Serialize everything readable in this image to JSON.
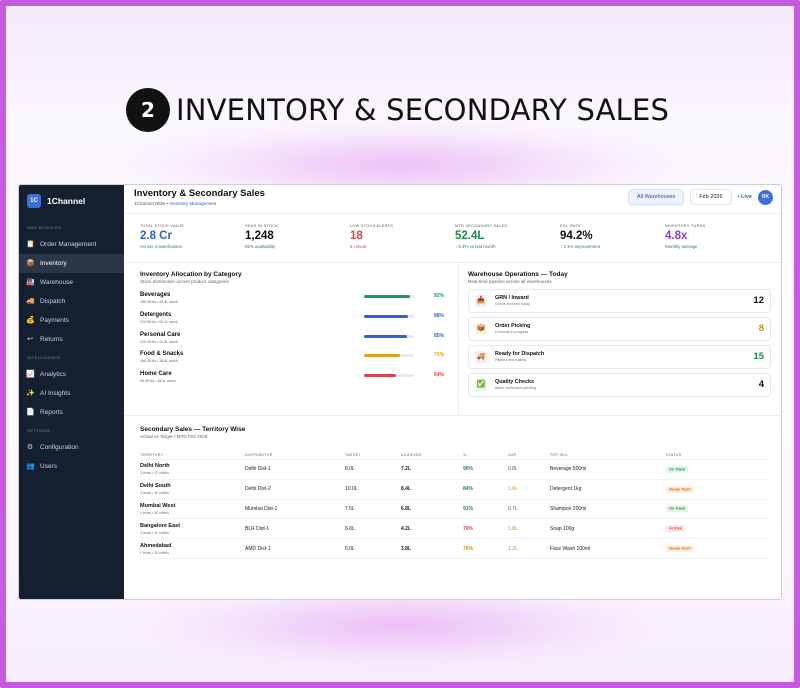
{
  "hero": {
    "number": "2",
    "title": "INVENTORY & SECONDARY SALES"
  },
  "app": {
    "brand": {
      "logo": "1C",
      "name": "1Channel"
    },
    "sidebar": {
      "sections": [
        {
          "label": "DMS MODULES",
          "items": [
            {
              "label": "Order Management",
              "icon": "clipboard-icon",
              "glyph": "📋",
              "active": false
            },
            {
              "label": "Inventory",
              "icon": "box-icon",
              "glyph": "📦",
              "active": true
            },
            {
              "label": "Warehouse",
              "icon": "warehouse-icon",
              "glyph": "🏭",
              "active": false
            },
            {
              "label": "Dispatch",
              "icon": "truck-icon",
              "glyph": "🚚",
              "active": false
            },
            {
              "label": "Payments",
              "icon": "money-bag-icon",
              "glyph": "💰",
              "active": false
            },
            {
              "label": "Returns",
              "icon": "return-icon",
              "glyph": "↩",
              "active": false
            }
          ]
        },
        {
          "label": "INTELLIGENCE",
          "items": [
            {
              "label": "Analytics",
              "icon": "chart-icon",
              "glyph": "📈",
              "active": false
            },
            {
              "label": "AI Insights",
              "icon": "sparkle-icon",
              "glyph": "✨",
              "active": false
            },
            {
              "label": "Reports",
              "icon": "report-icon",
              "glyph": "📄",
              "active": false
            }
          ]
        },
        {
          "label": "SETTINGS",
          "items": [
            {
              "label": "Configuration",
              "icon": "gear-icon",
              "glyph": "⚙",
              "active": false
            },
            {
              "label": "Users",
              "icon": "users-icon",
              "glyph": "👥",
              "active": false
            }
          ]
        }
      ]
    },
    "header": {
      "title": "Inventory & Secondary Sales",
      "crumb_prefix": "1Channel DMS • ",
      "crumb_page": "Inventory Management",
      "warehouse_selector": "All Warehouses",
      "period": "Feb 2026",
      "live_label": "• Live",
      "avatar": "RK"
    },
    "kpis": [
      {
        "label": "TOTAL STOCK VALUE",
        "value": "2.8 Cr",
        "sub": "Across 3 warehouses",
        "value_color": "#2f5fd0",
        "sub_color": "#1c8a4e"
      },
      {
        "label": "SKUS IN STOCK",
        "value": "1,248",
        "sub": "92% availability",
        "value_color": "#111111",
        "sub_color": "#1c8a4e"
      },
      {
        "label": "LOW STOCK ALERTS",
        "value": "18",
        "sub": "6 critical",
        "value_color": "#d9434b",
        "sub_color": "#d9434b"
      },
      {
        "label": "MTD SECONDARY SALES",
        "value": "52.4L",
        "sub": "↑ 8.4% vs last month",
        "value_color": "#1c8a4e",
        "sub_color": "#1c8a4e"
      },
      {
        "label": "FILL RATE",
        "value": "94.2%",
        "sub": "↑ 2.1% improvement",
        "value_color": "#111111",
        "sub_color": "#1c8a4e"
      },
      {
        "label": "INVENTORY TURNS",
        "value": "4.8x",
        "sub": "Monthly average",
        "value_color": "#8a3fd1",
        "sub_color": "#1c8a4e"
      }
    ],
    "allocation": {
      "title": "Inventory Allocation by Category",
      "subtitle": "Stock distribution across product categories",
      "rows": [
        {
          "name": "Beverages",
          "meta": "186 SKUs • 82.4L stock",
          "pct_label": "92%",
          "fraction": 0.92,
          "color": "#1c9a5f"
        },
        {
          "name": "Detergents",
          "meta": "124 SKUs • 64.2L stock",
          "pct_label": "88%",
          "fraction": 0.88,
          "color": "#2f62d6"
        },
        {
          "name": "Personal Care",
          "meta": "210 SKUs • 91.8L stock",
          "pct_label": "85%",
          "fraction": 0.85,
          "color": "#2f62d6"
        },
        {
          "name": "Food & Snacks",
          "meta": "168 SKUs • 38.6L stock",
          "pct_label": "71%",
          "fraction": 0.71,
          "color": "#e0a21a"
        },
        {
          "name": "Home Care",
          "meta": "96 SKUs • 28.4L stock",
          "pct_label": "64%",
          "fraction": 0.64,
          "color": "#d9434b"
        }
      ]
    },
    "warehouse_ops": {
      "title": "Warehouse Operations — Today",
      "subtitle": "Real-time pipeline across all warehouses",
      "items": [
        {
          "name": "GRN / Inward",
          "sub": "Goods received today",
          "count": "12",
          "icon": "inbox-icon",
          "glyph": "📥",
          "icon_bg": "#e8effd",
          "count_color": "#111111"
        },
        {
          "name": "Order Picking",
          "sub": "Currently in progress",
          "count": "8",
          "icon": "package-icon",
          "glyph": "📦",
          "icon_bg": "#fdf3df",
          "count_color": "#c8901a"
        },
        {
          "name": "Ready for Dispatch",
          "sub": "Packed and waiting",
          "count": "15",
          "icon": "truck-icon",
          "glyph": "🚚",
          "icon_bg": "#fde8e8",
          "count_color": "#1c8a4e"
        },
        {
          "name": "Quality Checks",
          "sub": "Batch verification pending",
          "count": "4",
          "icon": "check-icon",
          "glyph": "✅",
          "icon_bg": "#e4f5ea",
          "count_color": "#111111"
        }
      ]
    },
    "secondary": {
      "title": "Secondary Sales — Territory Wise",
      "subtitle": "Actual vs Target • MTD Feb 2026",
      "columns": [
        "TERRITORY",
        "DISTRIBUTOR",
        "TARGET",
        "ACHIEVED",
        "%",
        "GAP",
        "TOP SKU",
        "STATUS"
      ],
      "rows": [
        {
          "territory": "Delhi North",
          "meta": "3 beats • 42 outlets",
          "distributor": "Delhi Dist-1",
          "target": "8.0L",
          "achieved": "7.2L",
          "pct": "90%",
          "pct_color": "#1c8a4e",
          "gap": "0.8L",
          "gap_color": "#555555",
          "top_sku": "Beverage 500ml",
          "status": "On Track",
          "status_bg": "#e4f5ea",
          "status_color": "#1c8a4e"
        },
        {
          "territory": "Delhi South",
          "meta": "3 beats • 38 outlets",
          "distributor": "Delhi Dist-2",
          "target": "10.0L",
          "achieved": "8.4L",
          "pct": "84%",
          "pct_color": "#1c8a4e",
          "gap": "1.6L",
          "gap_color": "#d98a1a",
          "top_sku": "Detergent 1kg",
          "status": "Needs Push",
          "status_bg": "#fdeede",
          "status_color": "#c8701a"
        },
        {
          "territory": "Mumbai West",
          "meta": "4 beats • 56 outlets",
          "distributor": "Mumbai Dist-1",
          "target": "7.5L",
          "achieved": "6.8L",
          "pct": "91%",
          "pct_color": "#1c8a4e",
          "gap": "0.7L",
          "gap_color": "#555555",
          "top_sku": "Shampoo 200ml",
          "status": "On Track",
          "status_bg": "#e4f5ea",
          "status_color": "#1c8a4e"
        },
        {
          "territory": "Bangalore East",
          "meta": "3 beats • 34 outlets",
          "distributor": "BLR Dist-1",
          "target": "6.0L",
          "achieved": "4.2L",
          "pct": "70%",
          "pct_color": "#d9434b",
          "gap": "1.8L",
          "gap_color": "#d98a1a",
          "top_sku": "Soap 100g",
          "status": "At Risk",
          "status_bg": "#fde8e8",
          "status_color": "#d9434b"
        },
        {
          "territory": "Ahmedabad",
          "meta": "2 beats • 28 outlets",
          "distributor": "AMD Dist-1",
          "target": "5.0L",
          "achieved": "3.8L",
          "pct": "76%",
          "pct_color": "#d98a1a",
          "gap": "1.2L",
          "gap_color": "#d98a1a",
          "top_sku": "Face Wash 100ml",
          "status": "Needs Push",
          "status_bg": "#fdeede",
          "status_color": "#c8701a"
        }
      ]
    }
  }
}
